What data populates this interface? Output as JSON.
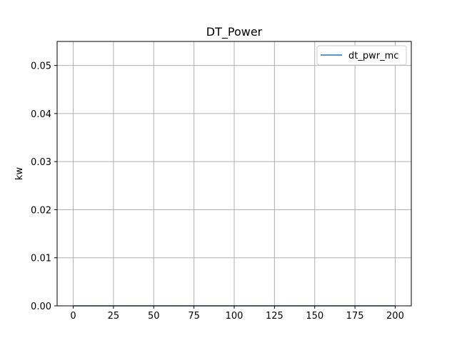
{
  "chart_data": {
    "type": "line",
    "title": "DT_Power",
    "xlabel": "",
    "ylabel": "kw",
    "xlim": [
      -10,
      210
    ],
    "ylim": [
      0,
      0.055
    ],
    "xticks": [
      0,
      25,
      50,
      75,
      100,
      125,
      150,
      175,
      200
    ],
    "yticks": [
      0.0,
      0.01,
      0.02,
      0.03,
      0.04,
      0.05
    ],
    "xtick_labels": [
      "0",
      "25",
      "50",
      "75",
      "100",
      "125",
      "150",
      "175",
      "200"
    ],
    "ytick_labels": [
      "0.00",
      "0.01",
      "0.02",
      "0.03",
      "0.04",
      "0.05"
    ],
    "grid": true,
    "legend": "upper-right",
    "series": [
      {
        "name": "dt_pwr_mc",
        "color": "#1f77b4",
        "x": [
          0,
          200
        ],
        "y": [
          0,
          0
        ]
      }
    ]
  }
}
